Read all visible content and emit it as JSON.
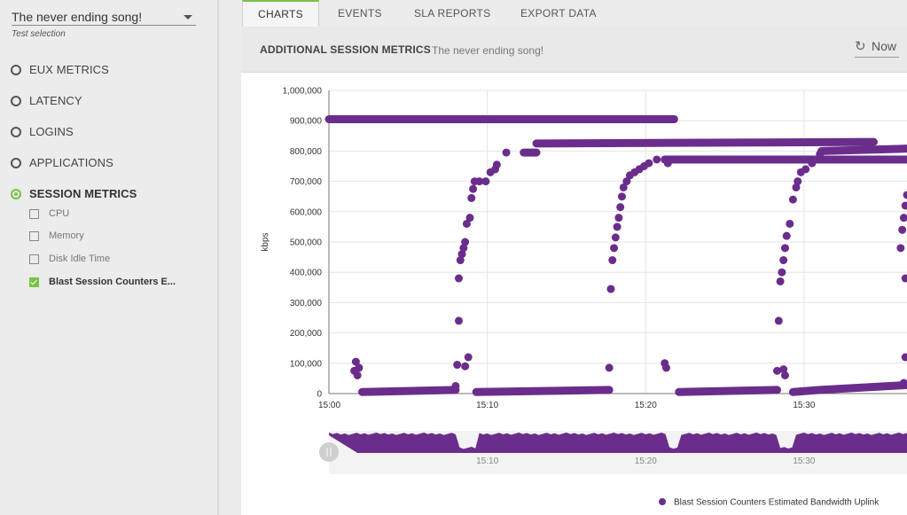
{
  "sidebar": {
    "test_select": {
      "value": "The never ending song!",
      "caption": "Test selection"
    },
    "metrics": [
      {
        "label": "EUX METRICS",
        "active": false
      },
      {
        "label": "LATENCY",
        "active": false
      },
      {
        "label": "LOGINS",
        "active": false
      },
      {
        "label": "APPLICATIONS",
        "active": false
      },
      {
        "label": "SESSION METRICS",
        "active": true
      }
    ],
    "session_counters": [
      {
        "label": "CPU",
        "checked": false
      },
      {
        "label": "Memory",
        "checked": false
      },
      {
        "label": "Disk Idle Time",
        "checked": false
      },
      {
        "label": "Blast Session Counters E...",
        "checked": true
      }
    ]
  },
  "tabs": [
    {
      "label": "CHARTS",
      "active": true
    },
    {
      "label": "EVENTS",
      "active": false
    },
    {
      "label": "SLA REPORTS",
      "active": false
    },
    {
      "label": "EXPORT DATA",
      "active": false
    }
  ],
  "header": {
    "title": "ADDITIONAL SESSION METRICS",
    "subtitle": "The never ending song!",
    "now_button": {
      "label": "Now",
      "icon": "refresh-icon"
    }
  },
  "colors": {
    "accent": "#7ac142",
    "series": "#6a2d8c"
  },
  "chart_data": {
    "type": "scatter",
    "ylabel": "kbps",
    "ylim": [
      0,
      1000000
    ],
    "yticks": [
      "1,000,000",
      "900,000",
      "800,000",
      "700,000",
      "600,000",
      "500,000",
      "400,000",
      "300,000",
      "200,000",
      "100,000",
      "0"
    ],
    "yticks_values": [
      1000000,
      900000,
      800000,
      700000,
      600000,
      500000,
      400000,
      300000,
      200000,
      100000,
      0
    ],
    "xlim_minutes": [
      0,
      36.5
    ],
    "xticks": [
      {
        "label": "15:00",
        "minutes": 0
      },
      {
        "label": "15:10",
        "minutes": 10
      },
      {
        "label": "15:20",
        "minutes": 20
      },
      {
        "label": "15:30",
        "minutes": 30
      }
    ],
    "navigator_ticks": [
      "15:10",
      "15:20",
      "15:30"
    ],
    "legend": "Blast Session Counters Estimated Bandwidth Uplink",
    "grid": true,
    "series": [
      {
        "name": "Blast Session Counters Estimated Bandwidth Uplink",
        "segments": [
          {
            "type": "line",
            "points": [
              [
                0,
                905000
              ],
              [
                21.8,
                905000
              ]
            ]
          },
          {
            "type": "line",
            "points": [
              [
                2.1,
                5000
              ],
              [
                8.0,
                12000
              ]
            ]
          },
          {
            "type": "line",
            "points": [
              [
                9.3,
                5000
              ],
              [
                17.7,
                12000
              ]
            ]
          },
          {
            "type": "line",
            "points": [
              [
                22.1,
                5000
              ],
              [
                28.3,
                12000
              ]
            ]
          },
          {
            "type": "line",
            "points": [
              [
                29.3,
                5000
              ],
              [
                31.0,
                12000
              ],
              [
                36.5,
                28000
              ]
            ]
          },
          {
            "type": "line",
            "points": [
              [
                12.3,
                795000
              ],
              [
                13.1,
                795000
              ]
            ]
          },
          {
            "type": "line",
            "points": [
              [
                13.1,
                825000
              ],
              [
                34.4,
                830000
              ]
            ]
          },
          {
            "type": "line",
            "points": [
              [
                21.2,
                772000
              ],
              [
                36.5,
                772000
              ]
            ]
          },
          {
            "type": "line",
            "points": [
              [
                31.1,
                800000
              ],
              [
                36.5,
                808000
              ]
            ]
          },
          {
            "type": "scatter",
            "points": [
              [
                1.6,
                75000
              ],
              [
                1.7,
                105000
              ],
              [
                1.8,
                60000
              ],
              [
                1.9,
                85000
              ],
              [
                8.0,
                25000
              ],
              [
                8.1,
                95000
              ],
              [
                8.2,
                380000
              ],
              [
                8.2,
                240000
              ],
              [
                8.6,
                90000
              ],
              [
                8.8,
                120000
              ]
            ]
          },
          {
            "type": "scatter",
            "points": [
              [
                17.7,
                85000
              ],
              [
                17.8,
                345000
              ],
              [
                21.2,
                100000
              ],
              [
                21.3,
                85000
              ],
              [
                21.4,
                760000
              ],
              [
                28.3,
                75000
              ],
              [
                28.4,
                240000
              ],
              [
                28.7,
                80000
              ],
              [
                28.8,
                60000
              ],
              [
                36.4,
                120000
              ],
              [
                36.4,
                380000
              ],
              [
                36.3,
                35000
              ]
            ]
          },
          {
            "type": "scatter",
            "points": [
              [
                8.3,
                440000
              ],
              [
                8.4,
                460000
              ],
              [
                8.5,
                480000
              ],
              [
                8.6,
                500000
              ],
              [
                8.7,
                560000
              ],
              [
                8.9,
                580000
              ],
              [
                9.0,
                645000
              ],
              [
                9.1,
                675000
              ],
              [
                9.2,
                700000
              ],
              [
                9.5,
                700000
              ],
              [
                9.9,
                700000
              ],
              [
                10.2,
                730000
              ],
              [
                10.5,
                740000
              ],
              [
                10.6,
                755000
              ],
              [
                11.2,
                795000
              ]
            ]
          },
          {
            "type": "scatter",
            "points": [
              [
                17.9,
                440000
              ],
              [
                18.0,
                480000
              ],
              [
                18.1,
                515000
              ],
              [
                18.2,
                550000
              ],
              [
                18.3,
                580000
              ],
              [
                18.4,
                615000
              ],
              [
                18.5,
                650000
              ],
              [
                18.6,
                680000
              ],
              [
                18.8,
                700000
              ],
              [
                19.0,
                720000
              ],
              [
                19.3,
                730000
              ],
              [
                19.6,
                740000
              ],
              [
                19.9,
                750000
              ],
              [
                20.2,
                760000
              ],
              [
                20.7,
                772000
              ]
            ]
          },
          {
            "type": "scatter",
            "points": [
              [
                28.5,
                370000
              ],
              [
                28.6,
                400000
              ],
              [
                28.7,
                440000
              ],
              [
                28.8,
                480000
              ],
              [
                28.9,
                520000
              ],
              [
                29.1,
                560000
              ],
              [
                29.3,
                640000
              ],
              [
                29.5,
                680000
              ],
              [
                29.6,
                700000
              ],
              [
                29.8,
                730000
              ],
              [
                30.1,
                740000
              ],
              [
                30.5,
                760000
              ],
              [
                31.0,
                790000
              ]
            ]
          },
          {
            "type": "scatter",
            "points": [
              [
                36.1,
                480000
              ],
              [
                36.2,
                540000
              ],
              [
                36.3,
                580000
              ],
              [
                36.4,
                620000
              ],
              [
                36.5,
                655000
              ]
            ]
          }
        ]
      }
    ]
  }
}
